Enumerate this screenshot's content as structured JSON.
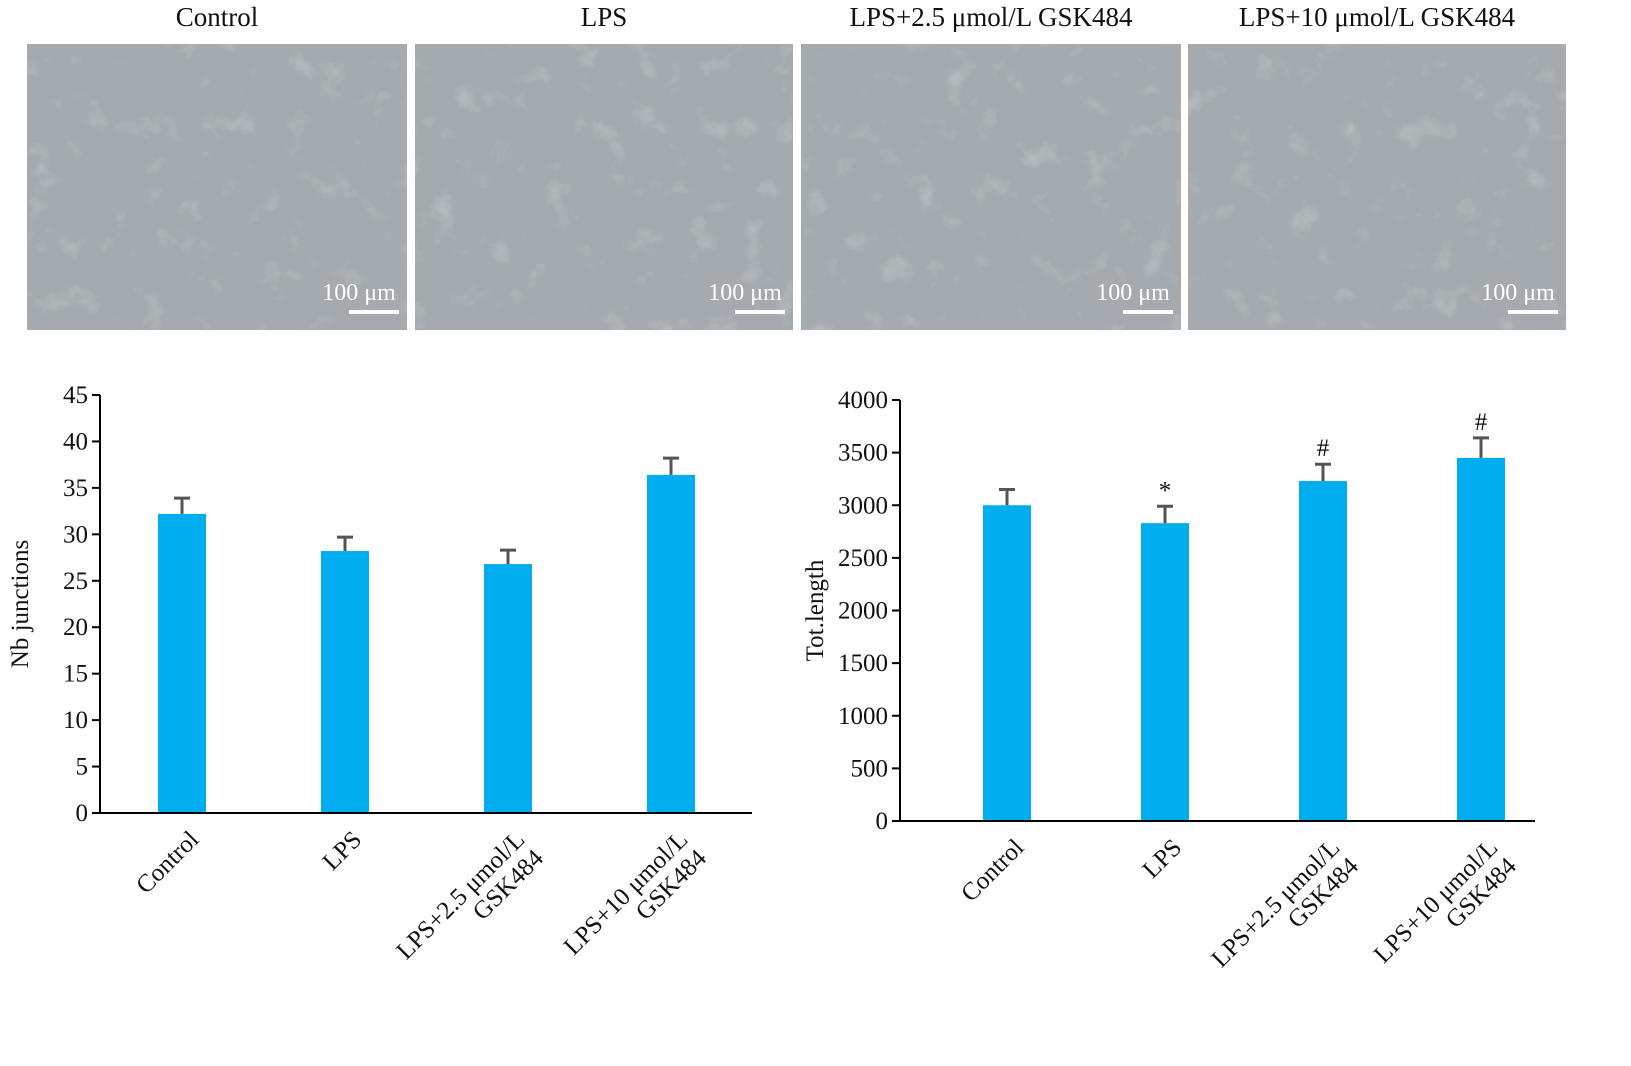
{
  "images": [
    {
      "title": "Control",
      "scale_label": "100 μm"
    },
    {
      "title": "LPS",
      "scale_label": "100 μm"
    },
    {
      "title": "LPS+2.5 μmol/L GSK484",
      "scale_label": "100 μm"
    },
    {
      "title": "LPS+10 μmol/L GSK484",
      "scale_label": "100 μm"
    }
  ],
  "chart_data": [
    {
      "type": "bar",
      "y_label": "Nb junctions",
      "categories": [
        "Control",
        "LPS",
        "LPS+2.5 μmol/L\nGSK484",
        "LPS+10 μmol/L\nGSK484"
      ],
      "values": [
        32.2,
        28.2,
        26.8,
        36.4
      ],
      "errors": [
        1.7,
        1.5,
        1.5,
        1.8
      ],
      "color": "#00adef",
      "error_color": "#555555",
      "ylim": [
        0,
        45
      ],
      "yticks": [
        0,
        5,
        10,
        15,
        20,
        25,
        30,
        35,
        40,
        45
      ]
    },
    {
      "type": "bar",
      "y_label": "Tot.length",
      "categories": [
        "Control",
        "LPS",
        "LPS+2.5 μmol/L\nGSK484",
        "LPS+10 μmol/L\nGSK484"
      ],
      "values": [
        3000,
        2830,
        3230,
        3450
      ],
      "errors": [
        150,
        160,
        160,
        190
      ],
      "annotations": [
        null,
        "*",
        "#",
        "#"
      ],
      "color": "#00adef",
      "error_color": "#555555",
      "ylim": [
        0,
        4000
      ],
      "yticks": [
        0,
        500,
        1000,
        1500,
        2000,
        2500,
        3000,
        3500,
        4000
      ]
    }
  ]
}
